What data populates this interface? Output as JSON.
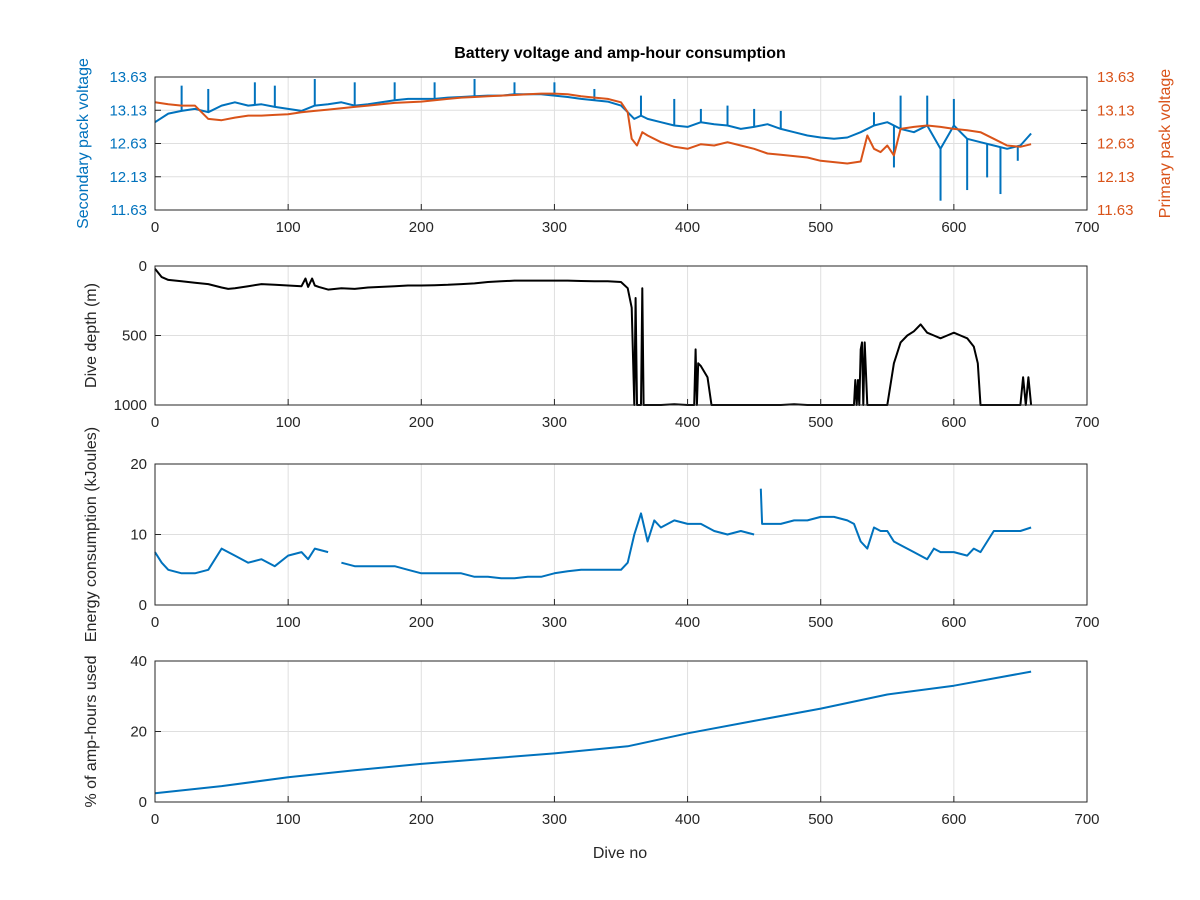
{
  "figure": {
    "title": "Battery voltage and amp-hour consumption",
    "xlabel": "Dive no"
  },
  "colors": {
    "secondary": "#0072BD",
    "primary": "#D95319",
    "depth": "#000000",
    "energy": "#0072BD",
    "amphours": "#0072BD",
    "grid": "#DFDFDF",
    "axis": "#262626"
  },
  "chart_data": [
    {
      "type": "line",
      "ylabel": "Secondary pack voltage",
      "ylabel_right": "Primary pack voltage",
      "xlim": [
        0,
        700
      ],
      "ylim": [
        11.63,
        13.63
      ],
      "xticks": [
        0,
        100,
        200,
        300,
        400,
        500,
        600,
        700
      ],
      "yticks": [
        11.63,
        12.13,
        12.63,
        13.13,
        13.63
      ],
      "ytick_labels": [
        "11.63",
        "12.13",
        "12.63",
        "13.13",
        "13.63"
      ],
      "series": [
        {
          "axis": "left",
          "x": [
            0,
            10,
            20,
            30,
            40,
            50,
            60,
            70,
            80,
            90,
            100,
            110,
            120,
            130,
            140,
            150,
            160,
            170,
            180,
            190,
            200,
            210,
            220,
            230,
            240,
            250,
            260,
            270,
            280,
            290,
            300,
            310,
            320,
            330,
            340,
            350,
            355,
            360,
            365,
            370,
            380,
            390,
            400,
            410,
            420,
            430,
            440,
            450,
            460,
            470,
            480,
            490,
            500,
            510,
            520,
            530,
            540,
            550,
            560,
            570,
            580,
            590,
            600,
            610,
            620,
            630,
            640,
            650,
            658
          ],
          "y": [
            12.95,
            13.08,
            13.12,
            13.15,
            13.1,
            13.2,
            13.25,
            13.2,
            13.22,
            13.18,
            13.15,
            13.12,
            13.2,
            13.22,
            13.25,
            13.2,
            13.22,
            13.25,
            13.28,
            13.3,
            13.3,
            13.3,
            13.32,
            13.33,
            13.34,
            13.35,
            13.35,
            13.37,
            13.37,
            13.37,
            13.35,
            13.33,
            13.3,
            13.28,
            13.26,
            13.2,
            13.1,
            13.0,
            13.05,
            13.0,
            12.95,
            12.9,
            12.88,
            12.95,
            12.92,
            12.9,
            12.85,
            12.88,
            12.92,
            12.85,
            12.8,
            12.75,
            12.72,
            12.7,
            12.72,
            12.8,
            12.9,
            12.95,
            12.85,
            12.8,
            12.9,
            12.55,
            12.9,
            12.7,
            12.65,
            12.6,
            12.55,
            12.6,
            12.78
          ],
          "spikes": [
            [
              20,
              13.5
            ],
            [
              40,
              13.45
            ],
            [
              75,
              13.55
            ],
            [
              90,
              13.5
            ],
            [
              120,
              13.6
            ],
            [
              150,
              13.55
            ],
            [
              180,
              13.55
            ],
            [
              210,
              13.55
            ],
            [
              240,
              13.6
            ],
            [
              270,
              13.55
            ],
            [
              300,
              13.55
            ],
            [
              330,
              13.45
            ],
            [
              365,
              13.35
            ],
            [
              390,
              13.3
            ],
            [
              410,
              13.15
            ],
            [
              430,
              13.2
            ],
            [
              450,
              13.15
            ],
            [
              470,
              13.12
            ],
            [
              540,
              13.1
            ],
            [
              560,
              13.35
            ],
            [
              580,
              13.35
            ],
            [
              600,
              13.3
            ],
            [
              590,
              11.77
            ],
            [
              610,
              11.93
            ],
            [
              625,
              12.12
            ],
            [
              635,
              11.87
            ],
            [
              648,
              12.37
            ],
            [
              555,
              12.27
            ]
          ]
        },
        {
          "axis": "right",
          "x": [
            0,
            10,
            20,
            30,
            40,
            50,
            60,
            70,
            80,
            90,
            100,
            110,
            120,
            130,
            140,
            150,
            160,
            170,
            180,
            190,
            200,
            210,
            220,
            230,
            240,
            250,
            260,
            270,
            280,
            290,
            300,
            310,
            320,
            330,
            340,
            350,
            355,
            358,
            362,
            366,
            370,
            380,
            390,
            400,
            410,
            420,
            430,
            440,
            450,
            460,
            470,
            480,
            490,
            500,
            510,
            520,
            530,
            535,
            540,
            545,
            550,
            555,
            560,
            570,
            580,
            590,
            600,
            610,
            620,
            630,
            640,
            650,
            658
          ],
          "y": [
            13.25,
            13.22,
            13.2,
            13.2,
            13.0,
            12.98,
            13.02,
            13.05,
            13.05,
            13.06,
            13.07,
            13.1,
            13.12,
            13.14,
            13.16,
            13.18,
            13.2,
            13.22,
            13.24,
            13.25,
            13.26,
            13.28,
            13.3,
            13.32,
            13.33,
            13.34,
            13.35,
            13.36,
            13.37,
            13.38,
            13.38,
            13.37,
            13.34,
            13.32,
            13.3,
            13.25,
            13.1,
            12.7,
            12.6,
            12.8,
            12.75,
            12.65,
            12.58,
            12.55,
            12.62,
            12.6,
            12.65,
            12.6,
            12.55,
            12.48,
            12.46,
            12.44,
            12.42,
            12.37,
            12.35,
            12.33,
            12.36,
            12.75,
            12.55,
            12.5,
            12.6,
            12.45,
            12.85,
            12.88,
            12.9,
            12.88,
            12.85,
            12.83,
            12.8,
            12.7,
            12.6,
            12.58,
            12.62
          ]
        }
      ]
    },
    {
      "type": "line",
      "ylabel": "Dive depth (m)",
      "xlim": [
        0,
        700
      ],
      "ylim": [
        0,
        1000
      ],
      "y_reversed": true,
      "xticks": [
        0,
        100,
        200,
        300,
        400,
        500,
        600,
        700
      ],
      "yticks": [
        0,
        500,
        1000
      ],
      "ytick_labels": [
        "0",
        "500",
        "1000"
      ],
      "series": [
        {
          "x": [
            0,
            5,
            10,
            20,
            30,
            40,
            50,
            55,
            60,
            70,
            80,
            90,
            100,
            110,
            113,
            115,
            118,
            120,
            123,
            130,
            140,
            150,
            160,
            170,
            180,
            190,
            200,
            210,
            220,
            230,
            240,
            250,
            260,
            270,
            280,
            290,
            300,
            310,
            320,
            330,
            340,
            350,
            355,
            358,
            360,
            361,
            362,
            363,
            364,
            365,
            366,
            367,
            368,
            369,
            370,
            380,
            390,
            400,
            405,
            406,
            407,
            408,
            410,
            415,
            418,
            420,
            430,
            440,
            450,
            460,
            470,
            480,
            490,
            500,
            510,
            520,
            525,
            526,
            527,
            528,
            529,
            530,
            531,
            532,
            533,
            535,
            537,
            538,
            540,
            545,
            550,
            555,
            560,
            565,
            570,
            575,
            580,
            585,
            590,
            595,
            600,
            605,
            610,
            615,
            618,
            620,
            630,
            640,
            650,
            652,
            654,
            656,
            658
          ],
          "y": [
            20,
            80,
            100,
            110,
            120,
            130,
            155,
            165,
            160,
            145,
            130,
            135,
            140,
            145,
            90,
            150,
            90,
            140,
            150,
            170,
            160,
            165,
            155,
            150,
            145,
            140,
            140,
            138,
            135,
            130,
            125,
            115,
            110,
            105,
            105,
            105,
            105,
            105,
            108,
            110,
            110,
            115,
            160,
            300,
            1000,
            230,
            1000,
            1000,
            1000,
            1000,
            160,
            1000,
            1000,
            1000,
            1000,
            1000,
            995,
            1000,
            1000,
            600,
            1000,
            700,
            720,
            800,
            1000,
            1000,
            1000,
            1000,
            1000,
            1000,
            1000,
            995,
            1000,
            1000,
            1000,
            1000,
            1000,
            820,
            1000,
            820,
            1000,
            600,
            550,
            1000,
            550,
            1000,
            1000,
            1000,
            1000,
            1000,
            1000,
            700,
            550,
            500,
            470,
            420,
            480,
            500,
            520,
            500,
            480,
            500,
            520,
            580,
            700,
            1000,
            1000,
            1000,
            1000,
            800,
            1000,
            800,
            1000
          ]
        }
      ]
    },
    {
      "type": "line",
      "ylabel": "Energy consumption (kJoules)",
      "xlim": [
        0,
        700
      ],
      "ylim": [
        0,
        20
      ],
      "xticks": [
        0,
        100,
        200,
        300,
        400,
        500,
        600,
        700
      ],
      "yticks": [
        0,
        10,
        20
      ],
      "ytick_labels": [
        "0",
        "10",
        "20"
      ],
      "series": [
        {
          "x": [
            0,
            5,
            10,
            20,
            30,
            40,
            50,
            55,
            60,
            70,
            80,
            90,
            100,
            110,
            115,
            120,
            130,
            135,
            140,
            150,
            160,
            170,
            180,
            190,
            200,
            210,
            220,
            230,
            240,
            250,
            260,
            270,
            280,
            290,
            300,
            310,
            320,
            330,
            340,
            350,
            355,
            360,
            365,
            370,
            375,
            380,
            390,
            400,
            410,
            420,
            430,
            440,
            450
          ],
          "y": [
            7.5,
            6,
            5,
            4.5,
            4.5,
            5,
            8,
            7.5,
            7,
            6,
            6.5,
            5.5,
            7,
            7.5,
            6.5,
            8,
            7.5,
            null,
            6,
            5.5,
            5.5,
            5.5,
            5.5,
            5,
            4.5,
            4.5,
            4.5,
            4.5,
            4,
            4,
            3.8,
            3.8,
            4,
            4,
            4.5,
            4.8,
            5,
            5,
            5,
            5,
            6,
            10,
            13,
            9,
            12,
            11,
            12,
            11.5,
            11.5,
            10.5,
            10,
            10.5,
            10
          ]
        },
        {
          "x": [
            455,
            456,
            460,
            470,
            480,
            490,
            500,
            510,
            520,
            525,
            530,
            535,
            540,
            545,
            550,
            555,
            560,
            570,
            580,
            585,
            590,
            600,
            610,
            615,
            620,
            630,
            640,
            650,
            658
          ],
          "y": [
            16.5,
            11.5,
            11.5,
            11.5,
            12,
            12,
            12.5,
            12.5,
            12,
            11.5,
            9,
            8,
            11,
            10.5,
            10.5,
            9,
            8.5,
            7.5,
            6.5,
            8,
            7.5,
            7.5,
            7,
            8,
            7.5,
            10.5,
            10.5,
            10.5,
            11
          ]
        }
      ]
    },
    {
      "type": "line",
      "ylabel": "% of amp-hours used",
      "xlabel": "Dive no",
      "xlim": [
        0,
        700
      ],
      "ylim": [
        0,
        40
      ],
      "xticks": [
        0,
        100,
        200,
        300,
        400,
        500,
        600,
        700
      ],
      "yticks": [
        0,
        20,
        40
      ],
      "ytick_labels": [
        "0",
        "20",
        "40"
      ],
      "series": [
        {
          "x": [
            0,
            50,
            100,
            150,
            200,
            250,
            300,
            355,
            400,
            450,
            500,
            550,
            600,
            658
          ],
          "y": [
            2.5,
            4.5,
            7,
            9,
            10.8,
            12.3,
            13.8,
            15.8,
            19.5,
            23,
            26.5,
            30.5,
            33,
            37
          ]
        }
      ]
    }
  ]
}
